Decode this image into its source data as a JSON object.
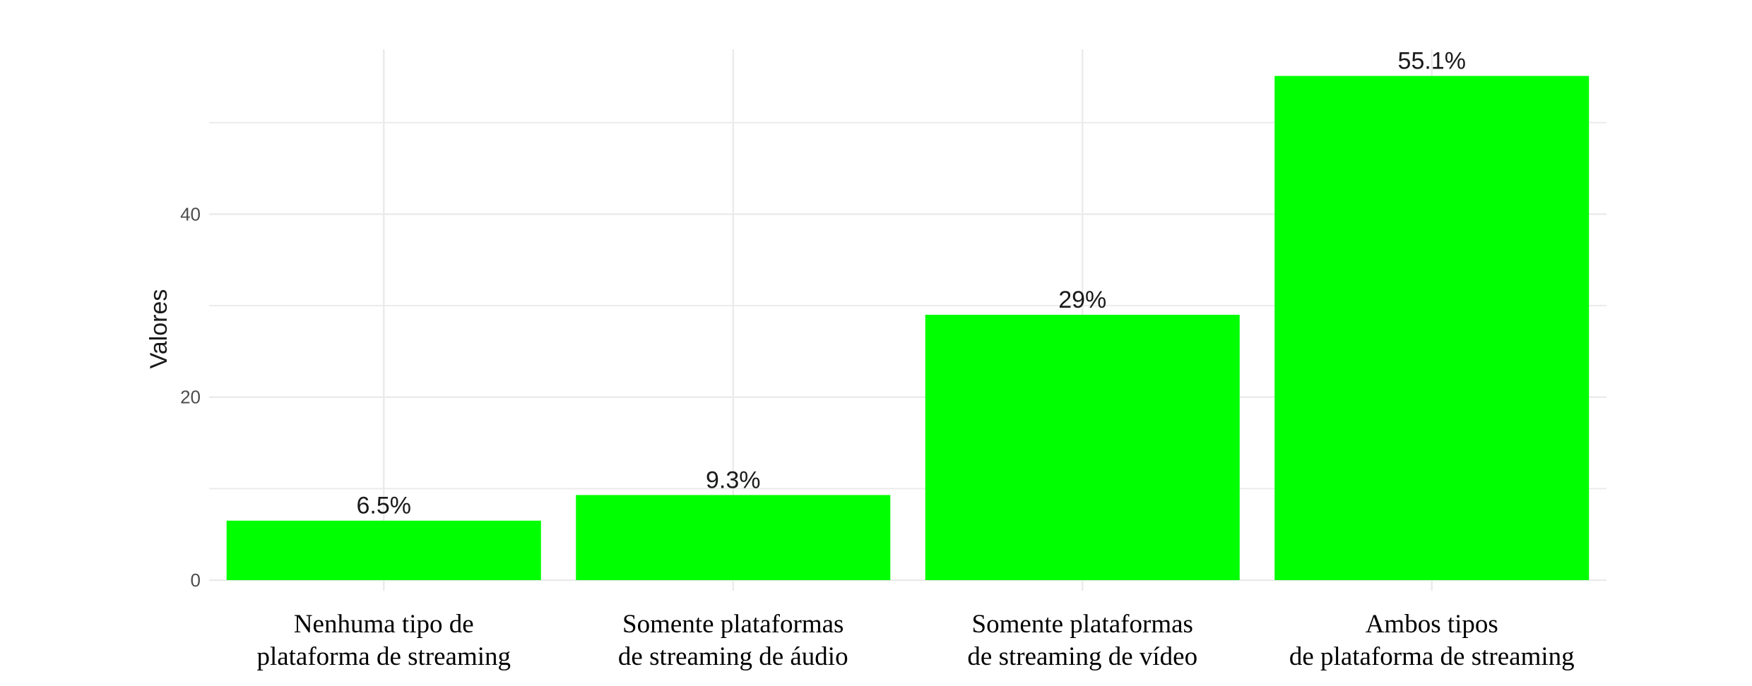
{
  "chart_data": {
    "type": "bar",
    "categories": [
      [
        "Nenhuma tipo de",
        "plataforma de streaming"
      ],
      [
        "Somente plataformas",
        "de streaming de áudio"
      ],
      [
        "Somente plataformas",
        "de streaming de  vídeo"
      ],
      [
        "Ambos tipos",
        "de plataforma de streaming"
      ]
    ],
    "values": [
      6.5,
      9.3,
      29,
      55.1
    ],
    "data_labels": [
      "6.5%",
      "9.3%",
      "29%",
      "55.1%"
    ],
    "ylabel": "Valores",
    "xlabel": "",
    "ylim": [
      0,
      58
    ],
    "yticks": [
      0,
      20,
      40
    ],
    "yticks_minor": [
      10,
      30,
      50
    ],
    "grid": true,
    "bar_color": "#00ff00",
    "grid_color": "#ebebeb"
  }
}
